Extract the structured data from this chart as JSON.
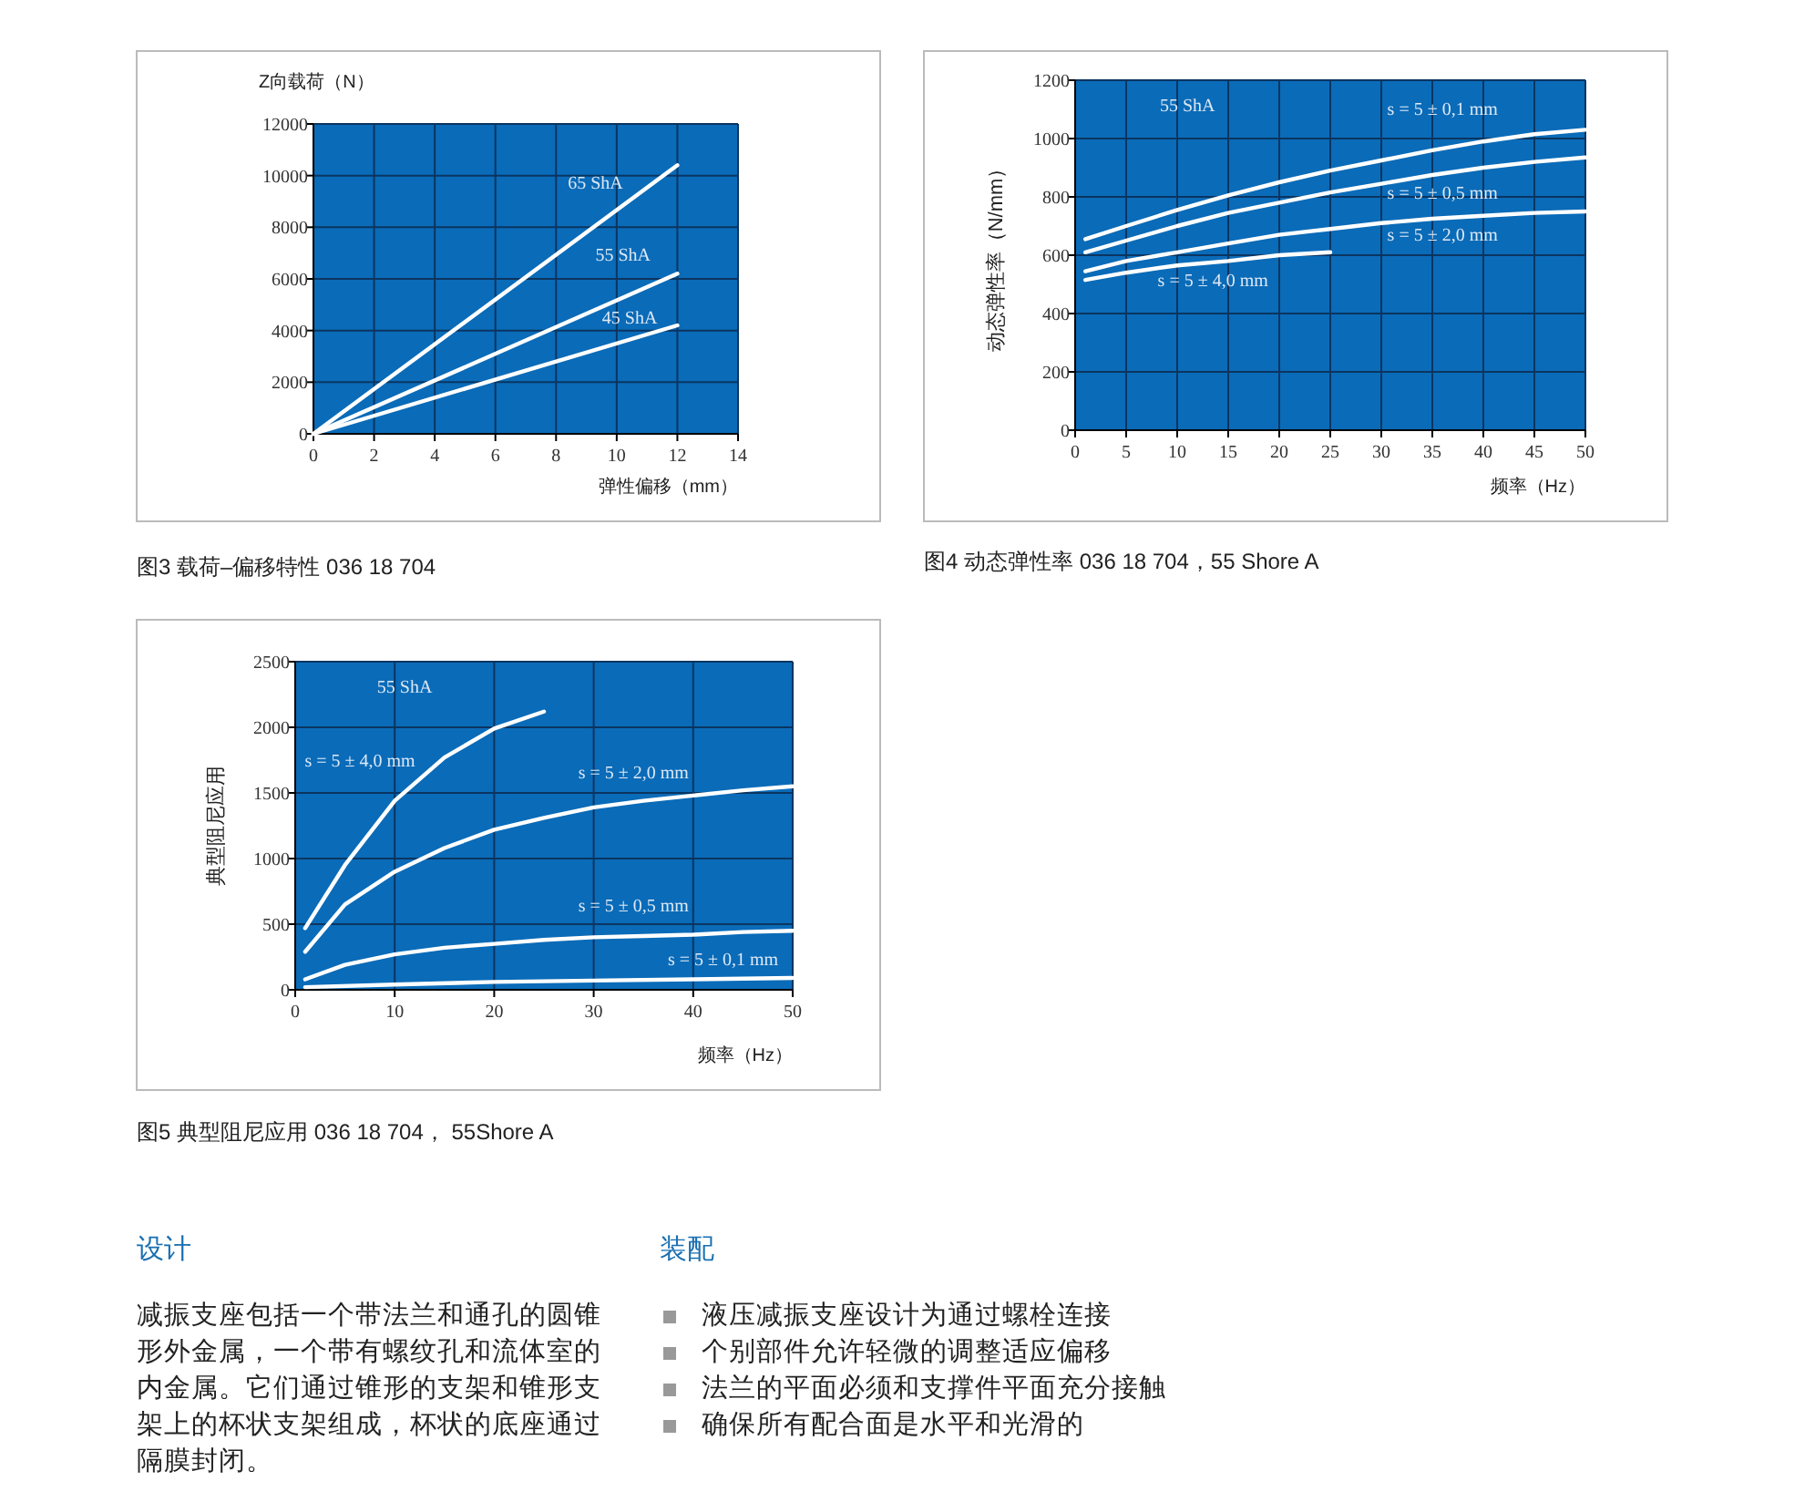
{
  "chart_data": [
    {
      "type": "line",
      "title": "图3 载荷–偏移特性 036 18 704",
      "xlabel": "弹性偏移（mm）",
      "ylabel": "Z向载荷（N）",
      "xlim": [
        0,
        14
      ],
      "xticks": [
        0,
        2,
        4,
        6,
        8,
        10,
        12,
        14
      ],
      "ylim": [
        0,
        12000
      ],
      "yticks": [
        0,
        2000,
        4000,
        6000,
        8000,
        10000,
        12000
      ],
      "grid": true,
      "x": [
        0,
        12
      ],
      "series": [
        {
          "name": "65 ShA",
          "color": "#ffffff",
          "values": [
            0,
            10400
          ]
        },
        {
          "name": "55 ShA",
          "color": "#ffffff",
          "values": [
            0,
            6200
          ]
        },
        {
          "name": "45 ShA",
          "color": "#ffffff",
          "values": [
            0,
            4200
          ]
        }
      ]
    },
    {
      "type": "line",
      "title": "图4 动态弹性率 036 18 704，55 Shore A",
      "xlabel": "频率（Hz）",
      "ylabel": "动态弹性率（N/mm）",
      "xlim": [
        0,
        50
      ],
      "xticks": [
        0,
        5,
        10,
        15,
        20,
        25,
        30,
        35,
        40,
        45,
        50
      ],
      "ylim": [
        0,
        1200
      ],
      "yticks": [
        0,
        200,
        400,
        600,
        800,
        1000,
        1200
      ],
      "grid": true,
      "series": [
        {
          "name": "s = 5 ± 0,1 mm",
          "color": "#ffffff",
          "x": [
            1,
            5,
            10,
            15,
            20,
            25,
            30,
            35,
            40,
            45,
            50
          ],
          "values": [
            655,
            700,
            755,
            805,
            850,
            890,
            925,
            960,
            990,
            1015,
            1030
          ]
        },
        {
          "name": "s = 5 ± 0,5 mm",
          "color": "#ffffff",
          "x": [
            1,
            5,
            10,
            15,
            20,
            25,
            30,
            35,
            40,
            45,
            50
          ],
          "values": [
            610,
            650,
            700,
            745,
            780,
            815,
            845,
            875,
            900,
            920,
            935
          ]
        },
        {
          "name": "s = 5 ± 2,0 mm",
          "color": "#ffffff",
          "x": [
            1,
            5,
            10,
            15,
            20,
            25,
            30,
            35,
            40,
            45,
            50
          ],
          "values": [
            545,
            580,
            610,
            640,
            670,
            690,
            710,
            725,
            735,
            745,
            750
          ]
        },
        {
          "name": "s = 5 ± 4,0 mm",
          "color": "#ffffff",
          "x": [
            1,
            5,
            10,
            15,
            20,
            25
          ],
          "values": [
            515,
            540,
            565,
            580,
            600,
            610
          ]
        }
      ],
      "annotations": [
        "55 ShA"
      ]
    },
    {
      "type": "line",
      "title": "图5 典型阻尼应用 036 18 704， 55Shore A",
      "xlabel": "频率（Hz）",
      "ylabel": "典型阻尼应用",
      "xlim": [
        0,
        50
      ],
      "xticks": [
        0,
        10,
        20,
        30,
        40,
        50
      ],
      "ylim": [
        0,
        2500
      ],
      "yticks": [
        0,
        500,
        1000,
        1500,
        2000,
        2500
      ],
      "grid": true,
      "series": [
        {
          "name": "s = 5 ± 4,0 mm",
          "color": "#ffffff",
          "x": [
            1,
            5,
            10,
            15,
            20,
            25
          ],
          "values": [
            470,
            950,
            1440,
            1770,
            1990,
            2120
          ]
        },
        {
          "name": "s = 5 ± 2,0 mm",
          "color": "#ffffff",
          "x": [
            1,
            5,
            10,
            15,
            20,
            25,
            30,
            35,
            40,
            45,
            50
          ],
          "values": [
            290,
            650,
            900,
            1080,
            1220,
            1310,
            1390,
            1440,
            1480,
            1520,
            1550
          ]
        },
        {
          "name": "s = 5 ± 0,5 mm",
          "color": "#ffffff",
          "x": [
            1,
            5,
            10,
            15,
            20,
            25,
            30,
            35,
            40,
            45,
            50
          ],
          "values": [
            80,
            190,
            270,
            320,
            350,
            380,
            400,
            410,
            420,
            440,
            450
          ]
        },
        {
          "name": "s = 5 ± 0,1 mm",
          "color": "#ffffff",
          "x": [
            1,
            10,
            20,
            30,
            40,
            50
          ],
          "values": [
            20,
            40,
            60,
            70,
            80,
            90
          ]
        }
      ],
      "annotations": [
        "55 ShA"
      ]
    },
    {
      "type": "other",
      "annotations": [
        "设计",
        "减振支座包括一个带法兰和通孔的圆锥形外金属，一个带有螺纹孔和流体室的内金属。它们通过锥形的支架和锥形支架上的杯状支架组成，杯状的底座通过隔膜封闭。",
        "装配",
        "液压减振支座设计为通过螺栓连接",
        "个别部件允许轻微的调整适应偏移",
        "法兰的平面必须和支撑件平面充分接触",
        "确保所有配合面是水平和光滑的"
      ]
    }
  ]
}
